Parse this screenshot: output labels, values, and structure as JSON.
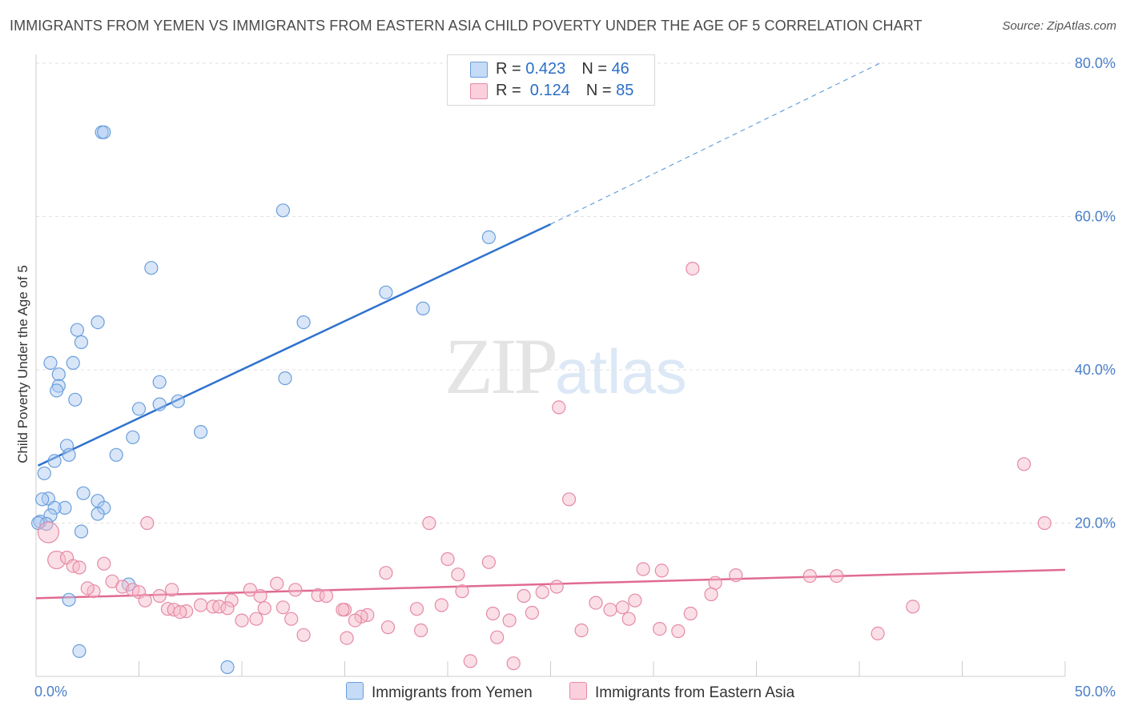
{
  "title": "IMMIGRANTS FROM YEMEN VS IMMIGRANTS FROM EASTERN ASIA CHILD POVERTY UNDER THE AGE OF 5 CORRELATION CHART",
  "source": "Source: ZipAtlas.com",
  "watermark": {
    "zip": "ZIP",
    "atlas": "atlas"
  },
  "legend": {
    "rows": [
      {
        "r_label": "R = ",
        "r_value": "0.423",
        "n_label": "N = ",
        "n_value": "46",
        "color": "#a8c8f0"
      },
      {
        "r_label": "R = ",
        "r_value": " 0.124",
        "n_label": "N = ",
        "n_value": "85",
        "color": "#f7b8c8"
      }
    ]
  },
  "bottom_legend": [
    {
      "label": "Immigrants from Yemen",
      "color": "#a8c8f0"
    },
    {
      "label": "Immigrants from Eastern Asia",
      "color": "#f7b8c8"
    }
  ],
  "chart_data": {
    "type": "scatter",
    "title": "IMMIGRANTS FROM YEMEN VS IMMIGRANTS FROM EASTERN ASIA CHILD POVERTY UNDER THE AGE OF 5 CORRELATION CHART",
    "xlabel": "",
    "ylabel": "Child Poverty Under the Age of 5",
    "xlim": [
      0,
      50
    ],
    "ylim": [
      0,
      82
    ],
    "x_tick_labels": [
      "0.0%",
      "50.0%"
    ],
    "y_ticks": [
      20,
      40,
      60,
      80
    ],
    "y_tick_labels": [
      "20.0%",
      "40.0%",
      "60.0%",
      "80.0%"
    ],
    "series": [
      {
        "name": "Immigrants from Yemen",
        "color": "#a8c8f0",
        "edge": "#6a9fdc",
        "trend": {
          "x0": 0.1,
          "y0": 27.5,
          "x1": 25,
          "y1": 59,
          "x_dash_end": 41,
          "y_dash_end": 80
        },
        "points": [
          [
            3.2,
            71.0
          ],
          [
            3.3,
            71.0
          ],
          [
            12.0,
            60.8
          ],
          [
            22.0,
            57.3
          ],
          [
            5.6,
            53.3
          ],
          [
            17.0,
            50.1
          ],
          [
            18.8,
            48.0
          ],
          [
            3.0,
            46.2
          ],
          [
            13.0,
            46.2
          ],
          [
            2.0,
            45.2
          ],
          [
            2.2,
            43.6
          ],
          [
            0.7,
            40.9
          ],
          [
            1.8,
            40.9
          ],
          [
            1.1,
            39.4
          ],
          [
            12.1,
            38.9
          ],
          [
            6.0,
            38.4
          ],
          [
            1.1,
            37.9
          ],
          [
            1.0,
            37.3
          ],
          [
            1.9,
            36.1
          ],
          [
            6.9,
            35.9
          ],
          [
            6.0,
            35.5
          ],
          [
            5.0,
            34.9
          ],
          [
            8.0,
            31.9
          ],
          [
            4.7,
            31.2
          ],
          [
            1.5,
            30.1
          ],
          [
            1.6,
            28.9
          ],
          [
            3.9,
            28.9
          ],
          [
            0.9,
            28.1
          ],
          [
            0.4,
            26.5
          ],
          [
            2.3,
            23.9
          ],
          [
            0.6,
            23.2
          ],
          [
            0.3,
            23.1
          ],
          [
            3.0,
            22.9
          ],
          [
            1.4,
            22.0
          ],
          [
            3.3,
            22.0
          ],
          [
            0.9,
            22.0
          ],
          [
            0.7,
            21.0
          ],
          [
            3.0,
            21.2
          ],
          [
            0.2,
            20.2
          ],
          [
            0.5,
            19.9
          ],
          [
            2.2,
            18.9
          ],
          [
            4.5,
            12.0
          ],
          [
            1.6,
            10.0
          ],
          [
            2.1,
            3.3
          ],
          [
            9.3,
            1.2
          ],
          [
            0.1,
            20.0
          ]
        ]
      },
      {
        "name": "Immigrants from Eastern Asia",
        "color": "#f7b8c8",
        "edge": "#e58aa6",
        "trend": {
          "x0": 0.0,
          "y0": 10.2,
          "x1": 50.0,
          "y1": 13.9
        },
        "points": [
          [
            31.9,
            53.2
          ],
          [
            25.4,
            35.1
          ],
          [
            48.0,
            27.7
          ],
          [
            25.9,
            23.1
          ],
          [
            0.6,
            18.8
          ],
          [
            19.1,
            20.0
          ],
          [
            5.4,
            20.0
          ],
          [
            49.0,
            20.0
          ],
          [
            1.0,
            15.2
          ],
          [
            1.5,
            15.5
          ],
          [
            20.0,
            15.3
          ],
          [
            22.0,
            14.9
          ],
          [
            1.8,
            14.4
          ],
          [
            2.1,
            14.2
          ],
          [
            3.3,
            14.7
          ],
          [
            29.5,
            14.0
          ],
          [
            30.4,
            13.8
          ],
          [
            17.0,
            13.5
          ],
          [
            20.5,
            13.3
          ],
          [
            37.6,
            13.1
          ],
          [
            38.9,
            13.1
          ],
          [
            3.7,
            12.4
          ],
          [
            11.7,
            12.1
          ],
          [
            33.0,
            12.2
          ],
          [
            4.2,
            11.7
          ],
          [
            4.7,
            11.3
          ],
          [
            10.4,
            11.3
          ],
          [
            12.6,
            11.3
          ],
          [
            2.8,
            11.1
          ],
          [
            25.3,
            11.7
          ],
          [
            24.6,
            11.0
          ],
          [
            5.0,
            11.0
          ],
          [
            6.6,
            11.3
          ],
          [
            20.7,
            11.1
          ],
          [
            13.7,
            10.6
          ],
          [
            10.9,
            10.5
          ],
          [
            6.0,
            10.5
          ],
          [
            23.7,
            10.5
          ],
          [
            14.1,
            10.5
          ],
          [
            32.8,
            10.7
          ],
          [
            5.3,
            9.9
          ],
          [
            9.5,
            9.9
          ],
          [
            27.2,
            9.6
          ],
          [
            29.1,
            9.9
          ],
          [
            19.7,
            9.3
          ],
          [
            8.0,
            9.3
          ],
          [
            8.6,
            9.1
          ],
          [
            8.9,
            9.1
          ],
          [
            9.3,
            8.9
          ],
          [
            11.1,
            8.9
          ],
          [
            6.4,
            8.8
          ],
          [
            6.7,
            8.7
          ],
          [
            7.3,
            8.5
          ],
          [
            15.0,
            8.7
          ],
          [
            18.5,
            8.8
          ],
          [
            27.9,
            8.7
          ],
          [
            28.5,
            9.0
          ],
          [
            42.6,
            9.1
          ],
          [
            14.9,
            8.7
          ],
          [
            24.1,
            8.3
          ],
          [
            31.8,
            8.2
          ],
          [
            22.2,
            8.2
          ],
          [
            16.1,
            8.0
          ],
          [
            15.8,
            7.8
          ],
          [
            10.7,
            7.5
          ],
          [
            10.0,
            7.3
          ],
          [
            12.4,
            7.5
          ],
          [
            15.5,
            7.3
          ],
          [
            23.0,
            7.3
          ],
          [
            28.8,
            7.5
          ],
          [
            17.1,
            6.4
          ],
          [
            18.7,
            6.0
          ],
          [
            26.5,
            6.0
          ],
          [
            30.3,
            6.2
          ],
          [
            31.2,
            5.9
          ],
          [
            40.9,
            5.6
          ],
          [
            13.0,
            5.4
          ],
          [
            15.1,
            5.0
          ],
          [
            22.4,
            5.1
          ],
          [
            21.1,
            2.0
          ],
          [
            23.2,
            1.7
          ],
          [
            2.5,
            11.5
          ],
          [
            7.0,
            8.4
          ],
          [
            12.0,
            9.0
          ],
          [
            34.0,
            13.2
          ]
        ]
      }
    ]
  }
}
